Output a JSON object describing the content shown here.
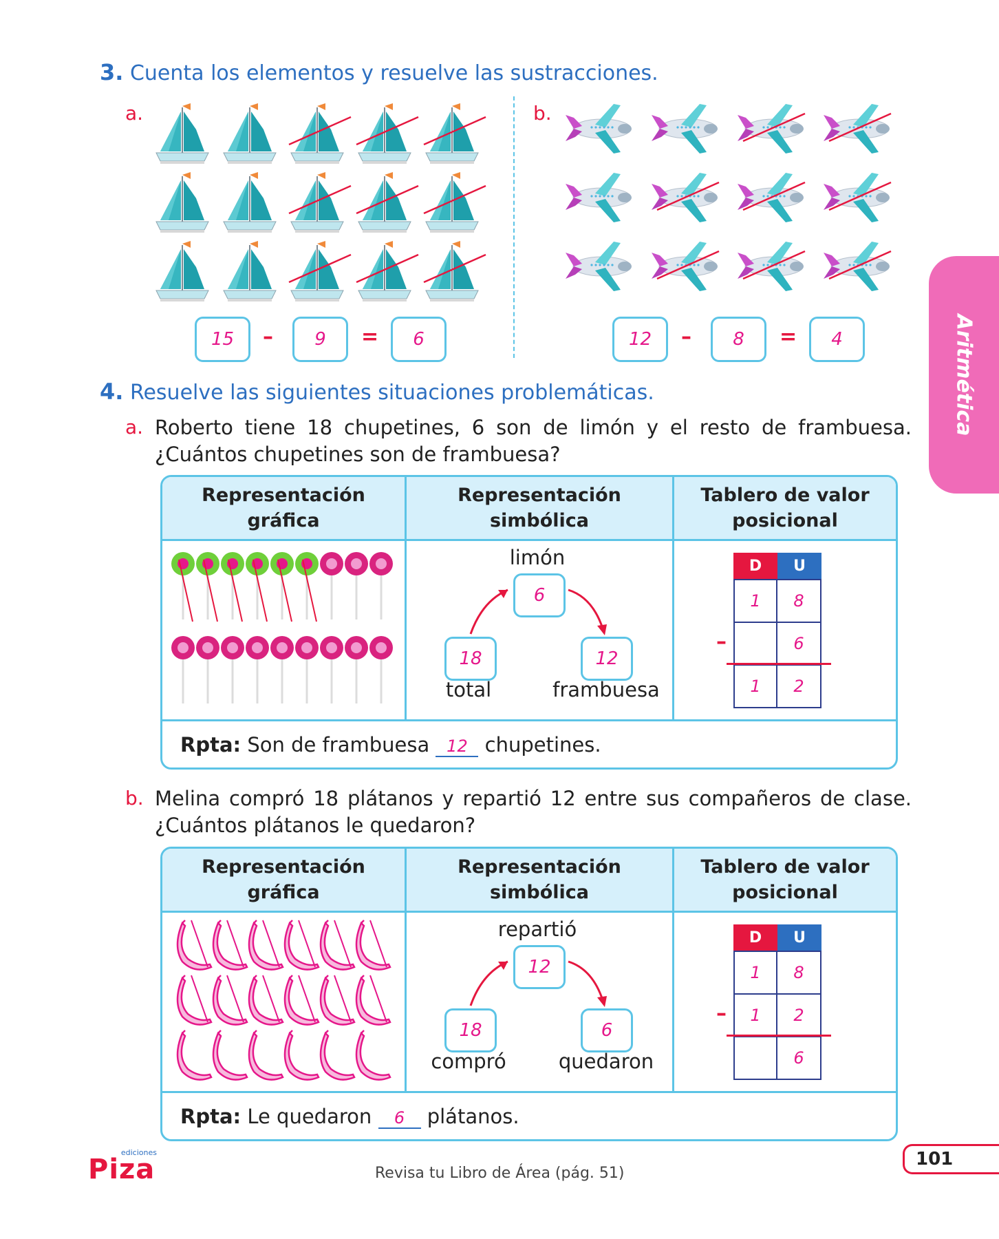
{
  "side_tab": "Aritmética",
  "ex3": {
    "number": "3.",
    "instruction": "Cuenta los elementos y resuelve las sustracciones.",
    "a": {
      "letter": "a.",
      "minuend": "15",
      "minus": "–",
      "subtrahend": "9",
      "equals": "=",
      "result": "6"
    },
    "b": {
      "letter": "b.",
      "minuend": "12",
      "minus": "–",
      "subtrahend": "8",
      "equals": "=",
      "result": "4"
    }
  },
  "ex4": {
    "number": "4.",
    "instruction": "Resuelve las siguientes situaciones problemáticas.",
    "a": {
      "letter": "a.",
      "problem_line1": "Roberto tiene 18 chupetines, 6 son de limón y el resto de frambuesa.",
      "problem_line2": "¿Cuántos chupetines son de frambuesa?",
      "headers": [
        "Representación gráfica",
        "Representación simbólica",
        "Tablero de valor posicional"
      ],
      "symbolic": {
        "top_label": "limón",
        "top_value": "6",
        "left_value": "18",
        "left_label": "total",
        "right_value": "12",
        "right_label": "frambuesa"
      },
      "place_value": {
        "d_header": "D",
        "u_header": "U",
        "row1": [
          "1",
          "8"
        ],
        "row2": [
          "",
          "6"
        ],
        "row3": [
          "1",
          "2"
        ],
        "sign": "–"
      },
      "rpta_label": "Rpta:",
      "rpta_before": "Son de frambuesa",
      "rpta_answer": "12",
      "rpta_after": "chupetines."
    },
    "b": {
      "letter": "b.",
      "problem_line1": "Melina compró 18 plátanos y repartió 12 entre sus compañeros de clase.",
      "problem_line2": "¿Cuántos plátanos le quedaron?",
      "headers": [
        "Representación gráfica",
        "Representación simbólica",
        "Tablero de valor posicional"
      ],
      "symbolic": {
        "top_label": "repartió",
        "top_value": "12",
        "left_value": "18",
        "left_label": "compró",
        "right_value": "6",
        "right_label": "quedaron"
      },
      "place_value": {
        "d_header": "D",
        "u_header": "U",
        "row1": [
          "1",
          "8"
        ],
        "row2": [
          "1",
          "2"
        ],
        "row3": [
          "",
          "6"
        ],
        "sign": "–"
      },
      "rpta_label": "Rpta:",
      "rpta_before": "Le quedaron",
      "rpta_answer": "6",
      "rpta_after": "plátanos."
    }
  },
  "footer": {
    "publisher": "Piza",
    "publisher_small": "ediciones",
    "reference": "Revisa tu Libro de Área (pág. 51)",
    "page": "101"
  },
  "colors": {
    "blue": "#2d6fc0",
    "red": "#e5173f",
    "magenta": "#e5178a",
    "cyan": "#5cc4e6",
    "tab": "#f06bb8"
  }
}
